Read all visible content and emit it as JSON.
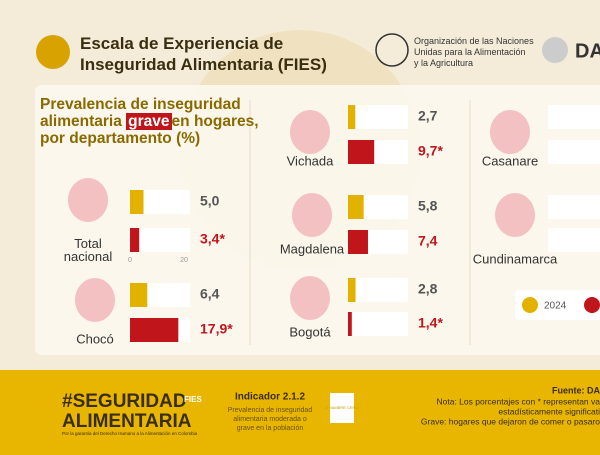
{
  "header": {
    "title_lines": [
      "Escala de Experiencia de",
      "Inseguridad Alimentaria (FIES)"
    ],
    "org_lines": [
      "Organización de las Naciones",
      "Unidas para la Alimentación",
      "y la Agricultura"
    ],
    "logo_text": "DA"
  },
  "chart_data": {
    "type": "bar",
    "title_parts": [
      "Prevalencia de inseguridad alimentaria",
      "grave",
      "en hogares, por departamento (%)"
    ],
    "xlim": [
      0,
      20
    ],
    "xticks": [
      0,
      20
    ],
    "series": [
      {
        "name": "2024",
        "color": "#e3b100"
      },
      {
        "color": "#c0161b"
      }
    ],
    "panels": [
      {
        "name": "Total nacional",
        "values": [
          5.0,
          3.4
        ],
        "value_labels": [
          "5,0",
          "3,4*"
        ]
      },
      {
        "name": "Chocó",
        "values": [
          6.4,
          17.9
        ],
        "value_labels": [
          "6,4",
          "17,9*"
        ]
      },
      {
        "name": "Vichada",
        "values": [
          2.7,
          9.7
        ],
        "value_labels": [
          "2,7",
          "9,7*"
        ]
      },
      {
        "name": "Magdalena",
        "values": [
          5.8,
          7.4
        ],
        "value_labels": [
          "5,8",
          "7,4"
        ]
      },
      {
        "name": "Bogotá",
        "values": [
          2.8,
          1.4
        ],
        "value_labels": [
          "2,8",
          "1,4*"
        ]
      },
      {
        "name": "Casanare"
      },
      {
        "name": "Cundinamarca"
      }
    ]
  },
  "footer": {
    "brand_lines": [
      "#SEGURIDAD",
      "ALIMENTARIA"
    ],
    "brand_tag": "FIES",
    "brand_sub": "Por la garantía del Derecho Humano a la Alimentación en Colombia",
    "indicator": "Indicador 2.1.2",
    "indicator_desc": [
      "Prevalencia de inseguridad",
      "alimentaria moderada o",
      "grave en la población"
    ],
    "sdg": "2 HAMBRE CERO",
    "source": "Fuente: DA",
    "notes": [
      "Nota: Los porcentajes con * representan va",
      "estadísticamente significati",
      "Grave: hogares que dejaron de comer o pasaro"
    ]
  }
}
